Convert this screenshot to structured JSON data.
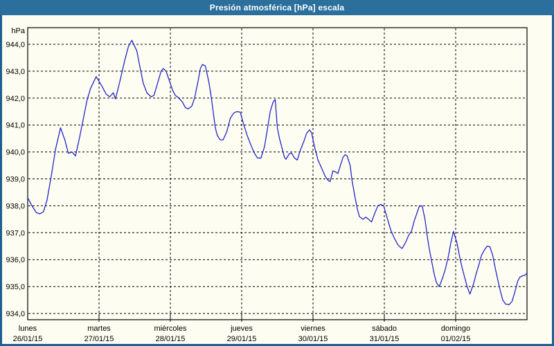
{
  "window": {
    "title": "Presión atmosférica [hPa] escala"
  },
  "colors": {
    "frame": "#1f5e91",
    "titlebar": "#2b6f9d",
    "plot_background": "#fdfdf2",
    "line": "#2323c8",
    "grid": "#000000",
    "text": "#000000",
    "title_text": "#ffffff"
  },
  "chart_data": {
    "type": "line",
    "title": "Presión atmosférica [hPa] escala",
    "y_unit_label": "hPa",
    "ylim": [
      934.0,
      944.0
    ],
    "xlim": [
      0,
      7
    ],
    "grid": "dashed",
    "legend": "none",
    "y_tick_values": [
      944.0,
      943.0,
      942.0,
      941.0,
      940.0,
      939.0,
      938.0,
      937.0,
      936.0,
      935.0,
      934.0
    ],
    "y_tick_labels": [
      "944,0",
      "943,0",
      "942,0",
      "941,0",
      "940,0",
      "939,0",
      "938,0",
      "937,0",
      "936,0",
      "935,0",
      "934,0"
    ],
    "x_ticks": [
      {
        "day": "lunes",
        "date": "26/01/15"
      },
      {
        "day": "martes",
        "date": "27/01/15"
      },
      {
        "day": "miércoles",
        "date": "28/01/15"
      },
      {
        "day": "jueves",
        "date": "29/01/15"
      },
      {
        "day": "viernes",
        "date": "30/01/15"
      },
      {
        "day": "sábado",
        "date": "31/01/15"
      },
      {
        "day": "domingo",
        "date": "01/02/15"
      }
    ],
    "series": [
      {
        "name": "presión atmosférica",
        "points": [
          [
            0.0,
            938.3
          ],
          [
            0.06,
            938.0
          ],
          [
            0.12,
            937.75
          ],
          [
            0.17,
            937.7
          ],
          [
            0.22,
            937.78
          ],
          [
            0.27,
            938.2
          ],
          [
            0.33,
            939.1
          ],
          [
            0.39,
            940.1
          ],
          [
            0.46,
            940.9
          ],
          [
            0.52,
            940.45
          ],
          [
            0.57,
            939.95
          ],
          [
            0.62,
            940.0
          ],
          [
            0.67,
            939.85
          ],
          [
            0.72,
            940.45
          ],
          [
            0.77,
            941.1
          ],
          [
            0.83,
            941.9
          ],
          [
            0.88,
            942.35
          ],
          [
            0.96,
            942.8
          ],
          [
            1.04,
            942.45
          ],
          [
            1.1,
            942.15
          ],
          [
            1.15,
            942.05
          ],
          [
            1.2,
            942.2
          ],
          [
            1.23,
            941.97
          ],
          [
            1.29,
            942.6
          ],
          [
            1.36,
            943.4
          ],
          [
            1.41,
            943.9
          ],
          [
            1.46,
            944.15
          ],
          [
            1.53,
            943.75
          ],
          [
            1.57,
            943.2
          ],
          [
            1.62,
            942.55
          ],
          [
            1.67,
            942.2
          ],
          [
            1.73,
            942.05
          ],
          [
            1.77,
            942.1
          ],
          [
            1.82,
            942.55
          ],
          [
            1.87,
            943.0
          ],
          [
            1.9,
            943.1
          ],
          [
            1.94,
            943.0
          ],
          [
            1.98,
            942.7
          ],
          [
            2.03,
            942.3
          ],
          [
            2.07,
            942.1
          ],
          [
            2.12,
            942.0
          ],
          [
            2.17,
            941.85
          ],
          [
            2.21,
            941.65
          ],
          [
            2.25,
            941.6
          ],
          [
            2.3,
            941.7
          ],
          [
            2.34,
            942.0
          ],
          [
            2.39,
            942.65
          ],
          [
            2.42,
            943.1
          ],
          [
            2.45,
            943.25
          ],
          [
            2.49,
            943.2
          ],
          [
            2.54,
            942.6
          ],
          [
            2.57,
            942.1
          ],
          [
            2.6,
            941.5
          ],
          [
            2.63,
            940.9
          ],
          [
            2.66,
            940.6
          ],
          [
            2.7,
            940.45
          ],
          [
            2.74,
            940.45
          ],
          [
            2.79,
            940.75
          ],
          [
            2.84,
            941.25
          ],
          [
            2.89,
            941.45
          ],
          [
            2.93,
            941.5
          ],
          [
            2.98,
            941.48
          ],
          [
            3.03,
            941.0
          ],
          [
            3.08,
            940.6
          ],
          [
            3.13,
            940.25
          ],
          [
            3.18,
            939.95
          ],
          [
            3.22,
            939.78
          ],
          [
            3.27,
            939.77
          ],
          [
            3.32,
            940.2
          ],
          [
            3.37,
            941.0
          ],
          [
            3.4,
            941.5
          ],
          [
            3.44,
            941.85
          ],
          [
            3.47,
            941.95
          ],
          [
            3.5,
            940.9
          ],
          [
            3.53,
            940.5
          ],
          [
            3.57,
            940.1
          ],
          [
            3.6,
            939.8
          ],
          [
            3.62,
            939.73
          ],
          [
            3.67,
            939.94
          ],
          [
            3.7,
            939.96
          ],
          [
            3.74,
            939.78
          ],
          [
            3.78,
            939.7
          ],
          [
            3.82,
            940.05
          ],
          [
            3.87,
            940.38
          ],
          [
            3.91,
            940.69
          ],
          [
            3.95,
            940.82
          ],
          [
            3.98,
            940.72
          ],
          [
            4.02,
            940.2
          ],
          [
            4.07,
            939.7
          ],
          [
            4.12,
            939.4
          ],
          [
            4.17,
            939.1
          ],
          [
            4.21,
            938.95
          ],
          [
            4.24,
            938.9
          ],
          [
            4.28,
            939.3
          ],
          [
            4.32,
            939.25
          ],
          [
            4.35,
            939.2
          ],
          [
            4.39,
            939.55
          ],
          [
            4.42,
            939.8
          ],
          [
            4.45,
            939.9
          ],
          [
            4.48,
            939.85
          ],
          [
            4.52,
            939.5
          ],
          [
            4.55,
            938.9
          ],
          [
            4.59,
            938.3
          ],
          [
            4.62,
            937.9
          ],
          [
            4.65,
            937.6
          ],
          [
            4.7,
            937.5
          ],
          [
            4.74,
            937.58
          ],
          [
            4.78,
            937.5
          ],
          [
            4.82,
            937.4
          ],
          [
            4.87,
            937.75
          ],
          [
            4.91,
            938.0
          ],
          [
            4.95,
            938.05
          ],
          [
            4.99,
            938.0
          ],
          [
            5.04,
            937.55
          ],
          [
            5.09,
            937.1
          ],
          [
            5.14,
            936.8
          ],
          [
            5.19,
            936.55
          ],
          [
            5.23,
            936.45
          ],
          [
            5.25,
            936.42
          ],
          [
            5.3,
            936.65
          ],
          [
            5.34,
            936.9
          ],
          [
            5.38,
            937.05
          ],
          [
            5.42,
            937.45
          ],
          [
            5.46,
            937.75
          ],
          [
            5.49,
            937.98
          ],
          [
            5.53,
            938.0
          ],
          [
            5.57,
            937.5
          ],
          [
            5.6,
            936.9
          ],
          [
            5.63,
            936.4
          ],
          [
            5.67,
            935.85
          ],
          [
            5.7,
            935.45
          ],
          [
            5.73,
            935.15
          ],
          [
            5.77,
            935.0
          ],
          [
            5.82,
            935.35
          ],
          [
            5.86,
            935.7
          ],
          [
            5.9,
            936.15
          ],
          [
            5.93,
            936.6
          ],
          [
            5.97,
            937.05
          ],
          [
            6.02,
            936.6
          ],
          [
            6.06,
            936.05
          ],
          [
            6.09,
            935.7
          ],
          [
            6.13,
            935.3
          ],
          [
            6.16,
            935.0
          ],
          [
            6.2,
            934.72
          ],
          [
            6.25,
            935.1
          ],
          [
            6.29,
            935.5
          ],
          [
            6.33,
            935.85
          ],
          [
            6.36,
            936.15
          ],
          [
            6.4,
            936.35
          ],
          [
            6.44,
            936.5
          ],
          [
            6.48,
            936.48
          ],
          [
            6.52,
            936.15
          ],
          [
            6.55,
            935.75
          ],
          [
            6.59,
            935.25
          ],
          [
            6.63,
            934.8
          ],
          [
            6.66,
            934.5
          ],
          [
            6.7,
            934.35
          ],
          [
            6.75,
            934.33
          ],
          [
            6.79,
            934.45
          ],
          [
            6.83,
            934.8
          ],
          [
            6.87,
            935.2
          ],
          [
            6.9,
            935.35
          ],
          [
            6.94,
            935.4
          ],
          [
            6.97,
            935.42
          ],
          [
            7.0,
            935.5
          ]
        ]
      }
    ]
  }
}
